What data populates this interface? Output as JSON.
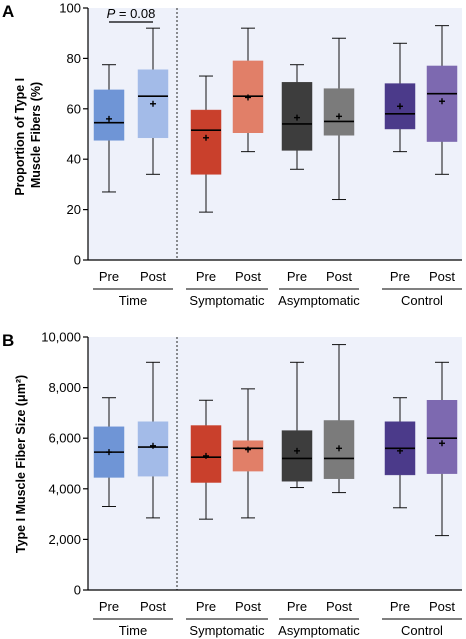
{
  "colors": {
    "panel_bg": "#eef1fa",
    "time": [
      "#6f95d6",
      "#a3bbe8"
    ],
    "symptomatic": [
      "#c9402c",
      "#e17f68"
    ],
    "asymptomatic": [
      "#3d3d3d",
      "#7b7b7b"
    ],
    "control": [
      "#4b3a8a",
      "#7d69b0"
    ]
  },
  "chart_data": [
    {
      "type": "box",
      "panel_label": "A",
      "ylabel_lines": [
        "Proportion of Type I",
        "Muscle Fibers (%)"
      ],
      "ylim": [
        0,
        100
      ],
      "yticks": [
        "0",
        "20",
        "40",
        "60",
        "80",
        "100"
      ],
      "ytick_values": [
        0,
        20,
        40,
        60,
        80,
        100
      ],
      "annotation": {
        "text": "P = 0.08",
        "groups": [
          0,
          1
        ]
      },
      "groups": [
        {
          "label": "Time",
          "color_key": "time",
          "boxes": [
            {
              "label": "Pre",
              "min": 27,
              "q1": 47.5,
              "median": 54.5,
              "q3": 67.5,
              "max": 77.5,
              "mean": 56
            },
            {
              "label": "Post",
              "min": 34,
              "q1": 48.5,
              "median": 65,
              "q3": 75.5,
              "max": 92,
              "mean": 62
            }
          ]
        },
        {
          "label": "Symptomatic",
          "color_key": "symptomatic",
          "boxes": [
            {
              "label": "Pre",
              "min": 19,
              "q1": 34,
              "median": 51.5,
              "q3": 59.5,
              "max": 73,
              "mean": 48.5
            },
            {
              "label": "Post",
              "min": 43,
              "q1": 50.5,
              "median": 65,
              "q3": 79,
              "max": 92,
              "mean": 64.5
            }
          ]
        },
        {
          "label": "Asymptomatic",
          "color_key": "asymptomatic",
          "boxes": [
            {
              "label": "Pre",
              "min": 36,
              "q1": 43.5,
              "median": 54,
              "q3": 70.5,
              "max": 77.5,
              "mean": 56.5
            },
            {
              "label": "Post",
              "min": 24,
              "q1": 49.5,
              "median": 55,
              "q3": 68,
              "max": 88,
              "mean": 57
            }
          ]
        },
        {
          "label": "Control",
          "color_key": "control",
          "boxes": [
            {
              "label": "Pre",
              "min": 43,
              "q1": 52,
              "median": 58,
              "q3": 70,
              "max": 86,
              "mean": 61
            },
            {
              "label": "Post",
              "min": 34,
              "q1": 47,
              "median": 66,
              "q3": 77,
              "max": 93,
              "mean": 63
            }
          ]
        }
      ]
    },
    {
      "type": "box",
      "panel_label": "B",
      "ylabel_lines": [
        "Type I Muscle Fiber Size (μm²)"
      ],
      "ylim": [
        0,
        10000
      ],
      "yticks": [
        "0",
        "2,000",
        "4,000",
        "6,000",
        "8,000",
        "10,000"
      ],
      "ytick_values": [
        0,
        2000,
        4000,
        6000,
        8000,
        10000
      ],
      "groups": [
        {
          "label": "Time",
          "color_key": "time",
          "boxes": [
            {
              "label": "Pre",
              "min": 3300,
              "q1": 4450,
              "median": 5450,
              "q3": 6450,
              "max": 7600,
              "mean": 5450
            },
            {
              "label": "Post",
              "min": 2850,
              "q1": 4500,
              "median": 5650,
              "q3": 6650,
              "max": 9000,
              "mean": 5700
            }
          ]
        },
        {
          "label": "Symptomatic",
          "color_key": "symptomatic",
          "boxes": [
            {
              "label": "Pre",
              "min": 2800,
              "q1": 4250,
              "median": 5250,
              "q3": 6500,
              "max": 7500,
              "mean": 5300
            },
            {
              "label": "Post",
              "min": 2850,
              "q1": 4700,
              "median": 5600,
              "q3": 5900,
              "max": 7950,
              "mean": 5550
            }
          ]
        },
        {
          "label": "Asymptomatic",
          "color_key": "asymptomatic",
          "boxes": [
            {
              "label": "Pre",
              "min": 4050,
              "q1": 4300,
              "median": 5200,
              "q3": 6300,
              "max": 9000,
              "mean": 5500
            },
            {
              "label": "Post",
              "min": 3850,
              "q1": 4400,
              "median": 5200,
              "q3": 6700,
              "max": 9700,
              "mean": 5600
            }
          ]
        },
        {
          "label": "Control",
          "color_key": "control",
          "boxes": [
            {
              "label": "Pre",
              "min": 3250,
              "q1": 4550,
              "median": 5600,
              "q3": 6650,
              "max": 7600,
              "mean": 5500
            },
            {
              "label": "Post",
              "min": 2150,
              "q1": 4600,
              "median": 6000,
              "q3": 7500,
              "max": 9000,
              "mean": 5800
            }
          ]
        }
      ]
    }
  ]
}
